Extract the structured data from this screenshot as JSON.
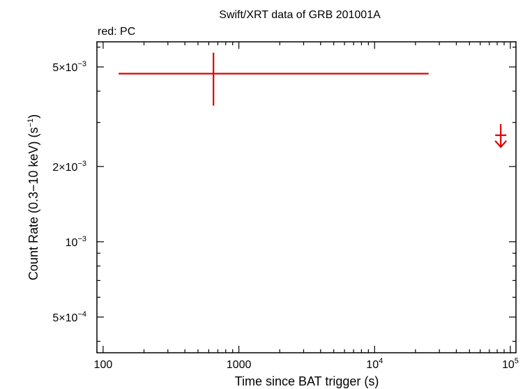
{
  "chart_data": {
    "type": "scatter",
    "title": "Swift/XRT data of GRB 201001A",
    "subtitle": "red: PC",
    "xlabel": "Time since BAT trigger (s)",
    "ylabel": "Count Rate (0.3−10 keV) (s",
    "ylabel_sup": "−1",
    "ylabel_end": ")",
    "x_scale": "log",
    "y_scale": "log",
    "xlim": [
      90,
      110000
    ],
    "ylim": [
      0.00036,
      0.0063
    ],
    "x_ticks": [
      {
        "value": 100,
        "base": "100",
        "exp": ""
      },
      {
        "value": 1000,
        "base": "1000",
        "exp": ""
      },
      {
        "value": 10000,
        "base": "10",
        "exp": "4"
      },
      {
        "value": 100000,
        "base": "10",
        "exp": "5"
      }
    ],
    "y_ticks": [
      {
        "value": 0.0005,
        "base": "5×10",
        "exp": "−4"
      },
      {
        "value": 0.001,
        "base": "10",
        "exp": "−3"
      },
      {
        "value": 0.002,
        "base": "2×10",
        "exp": "−3"
      },
      {
        "value": 0.005,
        "base": "5×10",
        "exp": "−3"
      }
    ],
    "series": [
      {
        "name": "PC",
        "color": "#e00000",
        "points": [
          {
            "x": 650,
            "y": 0.0047,
            "x_lo": 130,
            "x_hi": 25000,
            "y_lo": 0.0035,
            "y_hi": 0.0057
          }
        ],
        "upper_limits": [
          {
            "x": 85000,
            "y": 0.0025
          }
        ]
      }
    ],
    "grid": false
  }
}
